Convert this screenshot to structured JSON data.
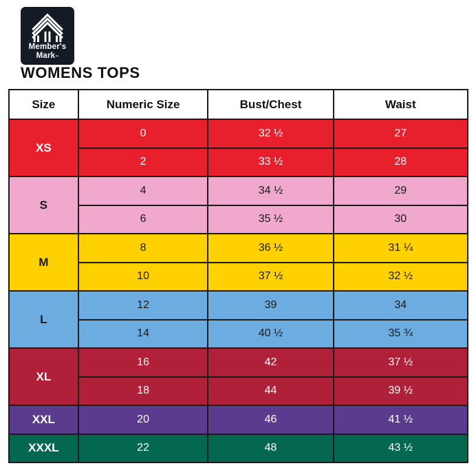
{
  "brand": {
    "name_line1": "Member's",
    "name_line2": "Mark",
    "trademark": "™",
    "logo_bg": "#141B24",
    "logo_stripe_color": "#ffffff"
  },
  "page": {
    "title": "WOMENS TOPS"
  },
  "table": {
    "headers": [
      "Size",
      "Numeric Size",
      "Bust/Chest",
      "Waist"
    ],
    "border_color": "#1b1b1b",
    "groups": [
      {
        "size": "XS",
        "color": "#E8202D",
        "text_color": "#ffffff",
        "rows": [
          [
            "0",
            "32 ½",
            "27"
          ],
          [
            "2",
            "33 ½",
            "28"
          ]
        ]
      },
      {
        "size": "S",
        "color": "#F0A8CC",
        "text_color": "#1a1a1a",
        "rows": [
          [
            "4",
            "34 ½",
            "29"
          ],
          [
            "6",
            "35 ½",
            "30"
          ]
        ]
      },
      {
        "size": "M",
        "color": "#FFD100",
        "text_color": "#1a1a1a",
        "rows": [
          [
            "8",
            "36 ½",
            "31 ¼"
          ],
          [
            "10",
            "37 ½",
            "32 ½"
          ]
        ]
      },
      {
        "size": "L",
        "color": "#6CACE0",
        "text_color": "#1a1a1a",
        "rows": [
          [
            "12",
            "39",
            "34"
          ],
          [
            "14",
            "40 ½",
            "35 ¾"
          ]
        ]
      },
      {
        "size": "XL",
        "color": "#B02039",
        "text_color": "#ffffff",
        "rows": [
          [
            "16",
            "42",
            "37 ½"
          ],
          [
            "18",
            "44",
            "39 ½"
          ]
        ]
      },
      {
        "size": "XXL",
        "color": "#5A3B8E",
        "text_color": "#ffffff",
        "rows": [
          [
            "20",
            "46",
            "41 ½"
          ]
        ]
      },
      {
        "size": "XXXL",
        "color": "#03684F",
        "text_color": "#ffffff",
        "rows": [
          [
            "22",
            "48",
            "43 ½"
          ]
        ]
      }
    ]
  },
  "chart_data": {
    "type": "table",
    "title": "WOMENS TOPS",
    "columns": [
      "Size",
      "Numeric Size",
      "Bust/Chest",
      "Waist"
    ],
    "rows": [
      [
        "XS",
        "0",
        "32 ½",
        "27"
      ],
      [
        "XS",
        "2",
        "33 ½",
        "28"
      ],
      [
        "S",
        "4",
        "34 ½",
        "29"
      ],
      [
        "S",
        "6",
        "35 ½",
        "30"
      ],
      [
        "M",
        "8",
        "36 ½",
        "31 ¼"
      ],
      [
        "M",
        "10",
        "37 ½",
        "32 ½"
      ],
      [
        "L",
        "12",
        "39",
        "34"
      ],
      [
        "L",
        "14",
        "40 ½",
        "35 ¾"
      ],
      [
        "XL",
        "16",
        "42",
        "37 ½"
      ],
      [
        "XL",
        "18",
        "44",
        "39 ½"
      ],
      [
        "XXL",
        "20",
        "46",
        "41 ½"
      ],
      [
        "XXXL",
        "22",
        "48",
        "43 ½"
      ]
    ]
  }
}
